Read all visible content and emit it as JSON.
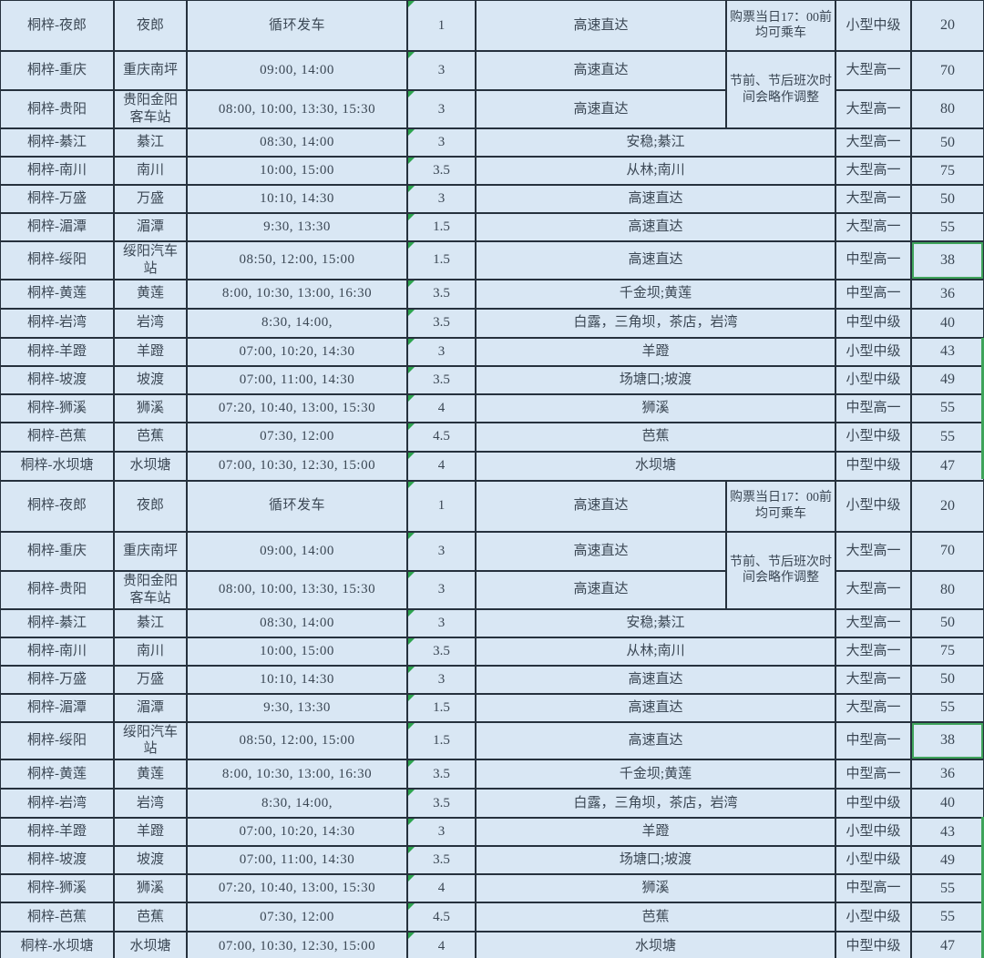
{
  "app": {
    "kind": "spreadsheet-bus-timetable",
    "colors": {
      "cell_bg": "#d9e7f4",
      "grid_line": "#26313d",
      "text": "#3b4754",
      "error_indicator_green": "#2da44e",
      "selection_green": "#3fa45b"
    }
  },
  "notes": {
    "note1": "购票当日17：00前均可乘车",
    "note2": "节前、节后班次时间会略作调整"
  },
  "table": {
    "copies": 2,
    "rows": [
      {
        "route": "桐梓-夜郎",
        "station": "夜郎",
        "times": "循环发车",
        "duration": "1",
        "via": "高速直达",
        "vehicle": "小型中级",
        "price": "20",
        "note_ref": "note1"
      },
      {
        "route": "桐梓-重庆",
        "station": "重庆南坪",
        "times": "09:00, 14:00",
        "duration": "3",
        "via": "高速直达",
        "vehicle": "大型高一",
        "price": "70",
        "note_ref": "note2"
      },
      {
        "route": "桐梓-贵阳",
        "station": "贵阳金阳客车站",
        "times": "08:00, 10:00, 13:30, 15:30",
        "duration": "3",
        "via": "高速直达",
        "vehicle": "大型高一",
        "price": "80",
        "note_ref": "note2-continued"
      },
      {
        "route": "桐梓-綦江",
        "station": "綦江",
        "times": "08:30, 14:00",
        "duration": "3",
        "via": "安稳;綦江",
        "vehicle": "大型高一",
        "price": "50"
      },
      {
        "route": "桐梓-南川",
        "station": "南川",
        "times": "10:00, 15:00",
        "duration": "3.5",
        "via": "从林;南川",
        "vehicle": "大型高一",
        "price": "75"
      },
      {
        "route": "桐梓-万盛",
        "station": "万盛",
        "times": "10:10, 14:30",
        "duration": "3",
        "via": "高速直达",
        "vehicle": "大型高一",
        "price": "50"
      },
      {
        "route": "桐梓-湄潭",
        "station": "湄潭",
        "times": "9:30, 13:30",
        "duration": "1.5",
        "via": "高速直达",
        "vehicle": "大型高一",
        "price": "55"
      },
      {
        "route": "桐梓-绥阳",
        "station": "绥阳汽车站",
        "times": "08:50, 12:00, 15:00",
        "duration": "1.5",
        "via": "高速直达",
        "vehicle": "中型高一",
        "price": "38",
        "selected": true
      },
      {
        "route": "桐梓-黄莲",
        "station": "黄莲",
        "times": "8:00, 10:30, 13:00, 16:30",
        "duration": "3.5",
        "via": "千金坝;黄莲",
        "vehicle": "中型高一",
        "price": "36"
      },
      {
        "route": "桐梓-岩湾",
        "station": "岩湾",
        "times": "8:30, 14:00,",
        "duration": "3.5",
        "via": "白露，三角坝，茶店，岩湾",
        "vehicle": "中型中级",
        "price": "40"
      },
      {
        "route": "桐梓-羊蹬",
        "station": "羊蹬",
        "times": "07:00, 10:20, 14:30",
        "duration": "3",
        "via": "羊蹬",
        "vehicle": "小型中级",
        "price": "43"
      },
      {
        "route": "桐梓-坡渡",
        "station": "坡渡",
        "times": "07:00, 11:00, 14:30",
        "duration": "3.5",
        "via": "场塘口;坡渡",
        "vehicle": "小型中级",
        "price": "49"
      },
      {
        "route": "桐梓-狮溪",
        "station": "狮溪",
        "times": "07:20, 10:40, 13:00, 15:30",
        "duration": "4",
        "via": "狮溪",
        "vehicle": "中型高一",
        "price": "55"
      },
      {
        "route": "桐梓-芭蕉",
        "station": "芭蕉",
        "times": "07:30, 12:00",
        "duration": "4.5",
        "via": "芭蕉",
        "vehicle": "小型中级",
        "price": "55"
      },
      {
        "route": "桐梓-水坝塘",
        "station": "水坝塘",
        "times": "07:00, 10:30, 12:30, 15:00",
        "duration": "4",
        "via": "水坝塘",
        "vehicle": "中型中级",
        "price": "47"
      }
    ]
  }
}
